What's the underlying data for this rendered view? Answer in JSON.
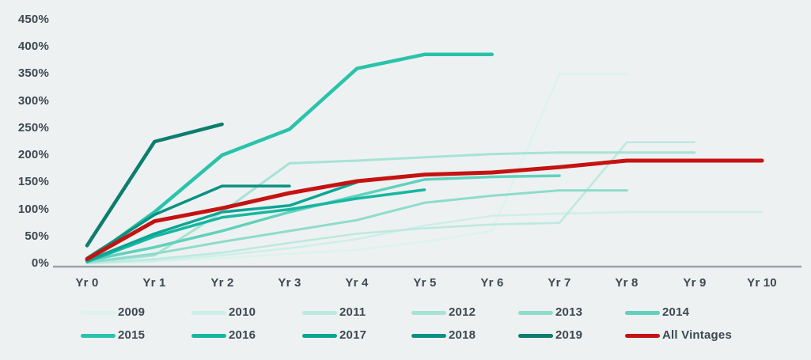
{
  "colors": {
    "background": "#eef1f1",
    "axis": "#9ba1a5",
    "text": "#3d4852",
    "all_vintages_red": "#c41312"
  },
  "chart_data": {
    "type": "line",
    "title": "",
    "xlabel": "",
    "ylabel": "",
    "x_labels": [
      "Yr 0",
      "Yr 1",
      "Yr 2",
      "Yr 3",
      "Yr 4",
      "Yr 5",
      "Yr 6",
      "Yr 7",
      "Yr 8",
      "Yr 9",
      "Yr 10"
    ],
    "y_ticks": [
      {
        "label": "0%",
        "value": 0
      },
      {
        "label": "50%",
        "value": 50
      },
      {
        "label": "100%",
        "value": 100
      },
      {
        "label": "150%",
        "value": 150
      },
      {
        "label": "200%",
        "value": 200
      },
      {
        "label": "250%",
        "value": 250
      },
      {
        "label": "300%",
        "value": 300
      },
      {
        "label": "350%",
        "value": 350
      },
      {
        "label": "400%",
        "value": 400
      },
      {
        "label": "450%",
        "value": 450
      }
    ],
    "ylim": [
      0,
      450
    ],
    "grid": false,
    "legend_position": "bottom",
    "unit": "percent",
    "series": [
      {
        "name": "2009",
        "color": "#ddf3ec",
        "width": 2.5,
        "values": [
          0,
          3,
          10,
          18,
          25,
          40,
          60,
          350,
          350
        ]
      },
      {
        "name": "2010",
        "color": "#cdefe7",
        "width": 2.5,
        "values": [
          0,
          5,
          15,
          28,
          45,
          70,
          88,
          92,
          95,
          95,
          95
        ]
      },
      {
        "name": "2011",
        "color": "#bce9df",
        "width": 2.5,
        "values": [
          0,
          8,
          20,
          38,
          55,
          65,
          72,
          75,
          224,
          224
        ]
      },
      {
        "name": "2012",
        "color": "#a6e3d5",
        "width": 3,
        "values": [
          2,
          15,
          95,
          185,
          190,
          196,
          202,
          205,
          205,
          205
        ]
      },
      {
        "name": "2013",
        "color": "#8edccb",
        "width": 3,
        "values": [
          2,
          18,
          40,
          60,
          80,
          112,
          125,
          135,
          135
        ]
      },
      {
        "name": "2014",
        "color": "#60d1bd",
        "width": 3.5,
        "values": [
          5,
          30,
          60,
          95,
          125,
          155,
          160,
          162
        ]
      },
      {
        "name": "2015",
        "color": "#29c3ab",
        "width": 4.5,
        "values": [
          5,
          95,
          200,
          248,
          360,
          386,
          386
        ]
      },
      {
        "name": "2016",
        "color": "#16b7a1",
        "width": 3.5,
        "values": [
          3,
          50,
          85,
          100,
          120,
          136
        ]
      },
      {
        "name": "2017",
        "color": "#0ba694",
        "width": 3.5,
        "values": [
          5,
          55,
          95,
          107,
          150
        ]
      },
      {
        "name": "2018",
        "color": "#0a9182",
        "width": 3.5,
        "values": [
          10,
          90,
          143,
          143
        ]
      },
      {
        "name": "2019",
        "color": "#0d7d6f",
        "width": 4.5,
        "values": [
          33,
          225,
          257
        ]
      },
      {
        "name": "All Vintages",
        "color": "#c41312",
        "width": 5,
        "values": [
          8,
          78,
          102,
          130,
          152,
          164,
          168,
          178,
          190,
          190,
          190
        ]
      }
    ]
  },
  "legend": {
    "rows": 2,
    "columns": 6,
    "entries": [
      "2009",
      "2010",
      "2011",
      "2012",
      "2013",
      "2014",
      "2015",
      "2016",
      "2017",
      "2018",
      "2019",
      "All Vintages"
    ]
  }
}
